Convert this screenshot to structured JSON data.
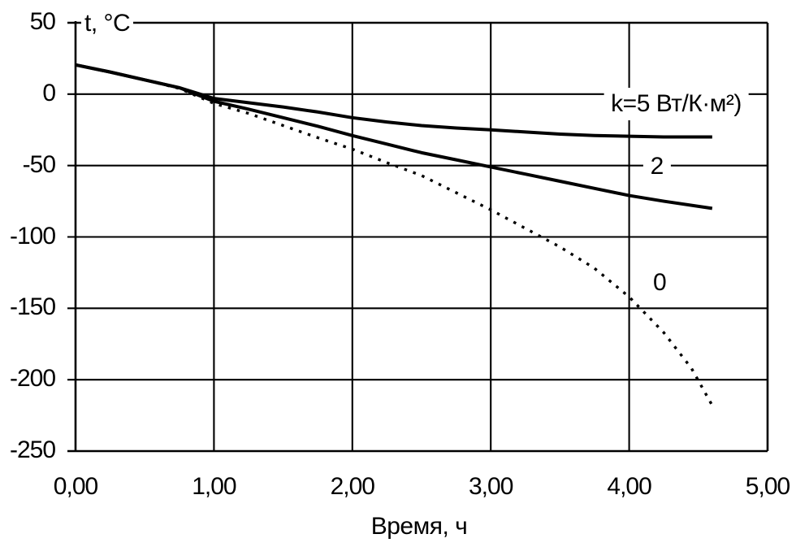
{
  "chart_data": {
    "type": "line",
    "title": "",
    "xlabel": "Время, ч",
    "ylabel": "t, °C",
    "xlim": [
      0,
      5
    ],
    "ylim": [
      -250,
      50
    ],
    "grid": true,
    "legend_position": "inline-annotations",
    "x_ticks": {
      "values": [
        0,
        1,
        2,
        3,
        4,
        5
      ],
      "labels": [
        "0,00",
        "1,00",
        "2,00",
        "3,00",
        "4,00",
        "5,00"
      ]
    },
    "y_ticks": {
      "values": [
        50,
        0,
        -50,
        -100,
        -150,
        -200,
        -250
      ],
      "labels": [
        "50",
        "0",
        "-50",
        "-100",
        "-150",
        "-200",
        "-250"
      ]
    },
    "series": [
      {
        "name": "k=5",
        "label": "k=5 Вт/К·м²)",
        "line_style": "solid",
        "x": [
          0,
          0.25,
          0.5,
          0.75,
          1.0,
          1.25,
          1.5,
          1.75,
          2.0,
          2.25,
          2.5,
          2.75,
          3.0,
          3.25,
          3.5,
          3.75,
          4.0,
          4.25,
          4.6
        ],
        "y": [
          20.5,
          15.5,
          10,
          4.5,
          -3,
          -6,
          -9,
          -12.5,
          -16.5,
          -19.5,
          -22,
          -23.7,
          -25,
          -26.5,
          -28,
          -29,
          -29.5,
          -30,
          -30
        ]
      },
      {
        "name": "k=2",
        "label": "2",
        "line_style": "solid",
        "x": [
          0,
          0.25,
          0.5,
          0.75,
          1.0,
          1.25,
          1.5,
          1.75,
          2.0,
          2.25,
          2.5,
          2.75,
          3.0,
          3.25,
          3.5,
          3.75,
          4.0,
          4.25,
          4.6
        ],
        "y": [
          20.5,
          15.5,
          10,
          4.5,
          -5,
          -10.5,
          -16.5,
          -22.5,
          -29,
          -35,
          -41,
          -46,
          -51,
          -56,
          -61,
          -66,
          -71,
          -75,
          -80
        ]
      },
      {
        "name": "k=0",
        "label": "0",
        "line_style": "dotted",
        "x": [
          0,
          0.25,
          0.5,
          0.75,
          1.0,
          1.25,
          1.5,
          1.75,
          2.0,
          2.25,
          2.5,
          2.75,
          3.0,
          3.25,
          3.5,
          3.75,
          4.0,
          4.25,
          4.45,
          4.6
        ],
        "y": [
          20.5,
          15.5,
          10,
          4,
          -6.5,
          -13.5,
          -22,
          -30.5,
          -38.5,
          -48,
          -57,
          -69,
          -81,
          -94,
          -107,
          -122,
          -142,
          -167,
          -192,
          -218
        ]
      }
    ],
    "annotations": [
      {
        "text": "k=5 Вт/К·м²)",
        "x": 4.34,
        "y": -7
      },
      {
        "text": "2",
        "x": 4.2,
        "y": -51
      },
      {
        "text": "0",
        "x": 4.22,
        "y": -132
      }
    ]
  },
  "colors": {
    "line": "#000000",
    "background": "#ffffff"
  }
}
